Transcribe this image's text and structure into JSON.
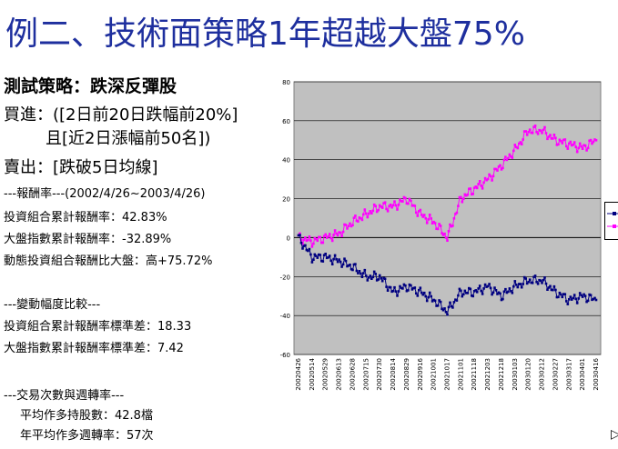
{
  "title": "例二、技術面策略1年超越大盤75%",
  "strategy": "測試策略：跌深反彈股",
  "buy_line1": "買進：([2日前20日跌幅前20%]",
  "buy_line2": "且[近2日漲幅前50名])",
  "sell": "賣出：[跌破5日均線]",
  "lines": [
    "---報酬率---(2002/4/26~2003/4/26)",
    "投資組合累計報酬率：42.83%",
    "大盤指數累計報酬率：-32.89%",
    "動態投資組合報酬比大盤：高+75.72%",
    "",
    "---變動幅度比較---",
    "投資組合累計報酬率標準差：18.33",
    "大盤指數累計報酬率標準差：7.42",
    "",
    "---交易次數與週轉率---",
    "平均作多持股數：42.8檔",
    "年平均作多週轉率：57次"
  ],
  "colors": {
    "portfolio": "#ff00ff",
    "market": "#000080",
    "title": "#1e2f9e",
    "plot_bg": "#c0c0c0"
  },
  "chart_data": {
    "type": "line",
    "ylim": [
      -60,
      80
    ],
    "yticks": [
      -60,
      -40,
      -20,
      0,
      20,
      40,
      60,
      80
    ],
    "categories": [
      "20020426",
      "20020514",
      "20020529",
      "20020613",
      "20020628",
      "20020715",
      "20020730",
      "20020814",
      "20020829",
      "20020916",
      "20021001",
      "20021017",
      "20021101",
      "20021118",
      "20021203",
      "20021218",
      "20030103",
      "20030120",
      "20030212",
      "20030227",
      "20030317",
      "20030401",
      "20030416"
    ],
    "series": [
      {
        "key": "portfolio",
        "values": [
          0,
          -2,
          0,
          2,
          8,
          12,
          16,
          16,
          20,
          12,
          8,
          0,
          20,
          25,
          30,
          37,
          45,
          55,
          55,
          50,
          48,
          46,
          50
        ]
      },
      {
        "key": "market",
        "values": [
          0,
          -10,
          -10,
          -12,
          -15,
          -20,
          -20,
          -28,
          -25,
          -28,
          -32,
          -38,
          -28,
          -28,
          -25,
          -30,
          -25,
          -22,
          -22,
          -28,
          -32,
          -30,
          -32
        ]
      }
    ]
  }
}
